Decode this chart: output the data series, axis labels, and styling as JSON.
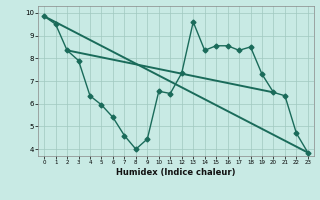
{
  "title": "",
  "xlabel": "Humidex (Indice chaleur)",
  "bg_color": "#c8eae4",
  "grid_color": "#a0c8c0",
  "line_color": "#1a6b5a",
  "xlim": [
    -0.5,
    23.5
  ],
  "ylim": [
    3.7,
    10.3
  ],
  "xticks": [
    0,
    1,
    2,
    3,
    4,
    5,
    6,
    7,
    8,
    9,
    10,
    11,
    12,
    13,
    14,
    15,
    16,
    17,
    18,
    19,
    20,
    21,
    22,
    23
  ],
  "yticks": [
    4,
    5,
    6,
    7,
    8,
    9,
    10
  ],
  "jagged_x": [
    0,
    1,
    2,
    3,
    4,
    5,
    6,
    7,
    8,
    9,
    10,
    11,
    12,
    13,
    14,
    15,
    16,
    17,
    18,
    19,
    20,
    21,
    22,
    23
  ],
  "jagged_y": [
    9.85,
    9.5,
    8.35,
    7.9,
    6.35,
    5.95,
    5.4,
    4.6,
    4.0,
    4.45,
    6.55,
    6.45,
    7.35,
    9.6,
    8.35,
    8.55,
    8.55,
    8.35,
    8.5,
    7.3,
    6.5,
    6.35,
    4.7,
    3.85
  ],
  "trend1_x": [
    0,
    23
  ],
  "trend1_y": [
    9.85,
    3.85
  ],
  "trend2_x": [
    2,
    20
  ],
  "trend2_y": [
    8.35,
    6.5
  ],
  "markersize": 2.5,
  "linewidth": 1.0
}
